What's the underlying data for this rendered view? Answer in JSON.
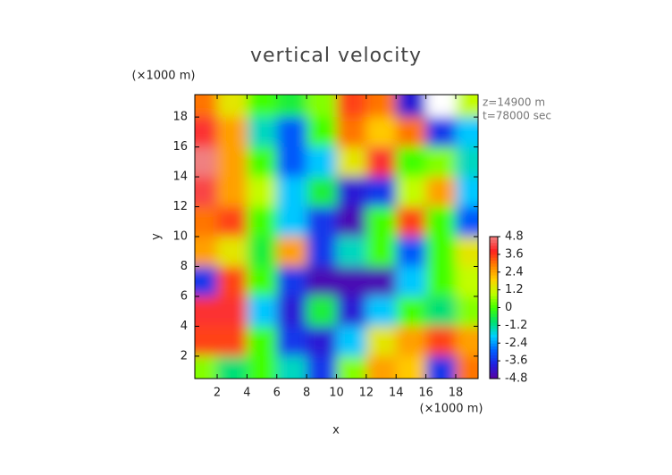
{
  "chart_data": {
    "type": "heatmap",
    "title": "vertical velocity",
    "x_label": "x",
    "y_label": "y",
    "x_unit": "(×1000 m)",
    "y_unit": "(×1000 m)",
    "annotations": [
      "z=14900 m",
      "t=78000 sec"
    ],
    "x": [
      1,
      3,
      5,
      7,
      9,
      11,
      13,
      15,
      17,
      19
    ],
    "y": [
      19,
      17,
      15,
      13,
      11,
      9,
      7,
      5,
      3,
      1
    ],
    "values": [
      [
        3,
        1.5,
        0,
        -0.5,
        0.5,
        3.5,
        3,
        -4,
        -5,
        1
      ],
      [
        4,
        2.5,
        -1.5,
        -3,
        0,
        3,
        2,
        3,
        -3.5,
        -2
      ],
      [
        4.8,
        2.5,
        0,
        -3,
        -2,
        1.5,
        4,
        0,
        0.5,
        -1.5
      ],
      [
        4.2,
        2.5,
        1,
        -2,
        -0.5,
        -4,
        -3.5,
        1,
        2.5,
        -2
      ],
      [
        3,
        3.5,
        0,
        -2,
        -3.5,
        -4.5,
        0,
        3.5,
        0,
        -3
      ],
      [
        2.5,
        1.5,
        -0.5,
        2.5,
        -3.5,
        -1.5,
        0,
        -3,
        0,
        1.5
      ],
      [
        -3.5,
        3.5,
        0,
        -3.5,
        -4.5,
        -4.5,
        -4.5,
        -2,
        0,
        1
      ],
      [
        4,
        4,
        -2,
        -4,
        -0.5,
        -4,
        -2,
        0,
        -1,
        0.5
      ],
      [
        3.5,
        3.5,
        0,
        -3.5,
        -4,
        -2,
        1.5,
        2.5,
        3.5,
        2.5
      ],
      [
        0.5,
        -1,
        0,
        -1.5,
        -3.5,
        0.5,
        2.5,
        2,
        -3.5,
        3
      ]
    ],
    "xlim": [
      0.5,
      19.5
    ],
    "ylim": [
      0.5,
      19.5
    ],
    "xticks": [
      2,
      4,
      6,
      8,
      10,
      12,
      14,
      16,
      18
    ],
    "yticks": [
      2,
      4,
      6,
      8,
      10,
      12,
      14,
      16,
      18
    ],
    "clim": [
      -4.8,
      4.8
    ],
    "cticks": [
      4.8,
      3.6,
      2.4,
      1.2,
      0,
      -1.2,
      -2.4,
      -3.6,
      -4.8
    ],
    "colormap": [
      "#5a00a0",
      "#2020e0",
      "#0060ff",
      "#00d0ff",
      "#00e070",
      "#40ff00",
      "#c0ff00",
      "#ffd000",
      "#ff8000",
      "#ff2020",
      "#f08080"
    ]
  }
}
